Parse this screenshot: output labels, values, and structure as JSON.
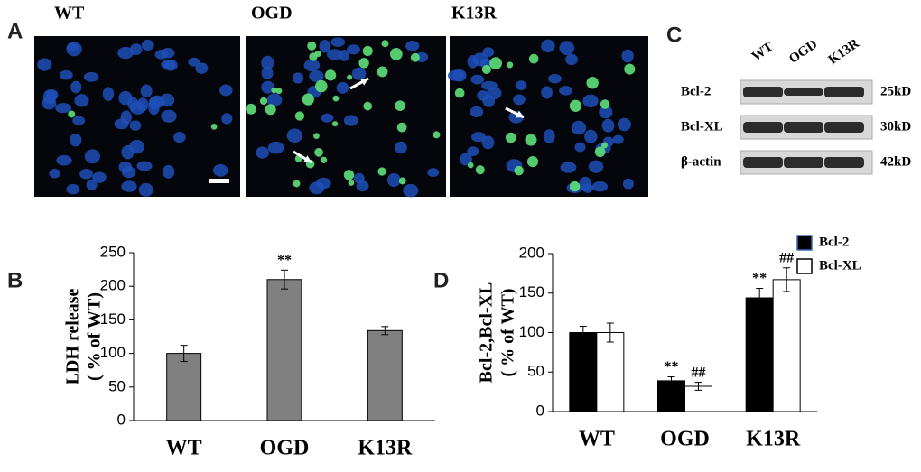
{
  "panels": {
    "a": "A",
    "b": "B",
    "c": "C",
    "d": "D"
  },
  "micrographs": {
    "labels": [
      "WT",
      "OGD",
      "K13R"
    ]
  },
  "western_blot": {
    "lanes": [
      "WT",
      "OGD",
      "K13R"
    ],
    "bands": [
      {
        "name": "Bcl-2",
        "size": "25kD"
      },
      {
        "name": "Bcl-XL",
        "size": "30kD"
      },
      {
        "name": "β-actin",
        "size": "42kD"
      }
    ]
  },
  "chart_data": [
    {
      "type": "bar",
      "y_label": [
        "LDH release",
        "( % of WT)"
      ],
      "categories": [
        "WT",
        "OGD",
        "K13R"
      ],
      "values": [
        100,
        210,
        134
      ],
      "errors": [
        12,
        14,
        6
      ],
      "annotations": [
        null,
        "**",
        null
      ],
      "color": "#808080",
      "ylim": [
        0,
        250
      ],
      "yticks": [
        0,
        50,
        100,
        150,
        200,
        250
      ],
      "grid": false
    },
    {
      "type": "grouped_bar",
      "y_label": [
        "Bcl-2,Bcl-XL",
        "( % of  WT)"
      ],
      "categories": [
        "WT",
        "OGD",
        "K13R"
      ],
      "series": [
        {
          "name": "Bcl-2",
          "color": "#000000",
          "values": [
            100,
            39,
            144
          ],
          "errors": [
            8,
            5,
            12
          ],
          "annotations": [
            null,
            "**",
            "**"
          ]
        },
        {
          "name": "Bcl-XL",
          "color": "#ffffff",
          "values": [
            100,
            32,
            167
          ],
          "errors": [
            12,
            5,
            15
          ],
          "annotations": [
            null,
            "##",
            "##"
          ]
        }
      ],
      "ylim": [
        0,
        200
      ],
      "yticks": [
        0,
        50,
        100,
        150,
        200
      ],
      "grid": false,
      "legend": "upper right"
    }
  ]
}
